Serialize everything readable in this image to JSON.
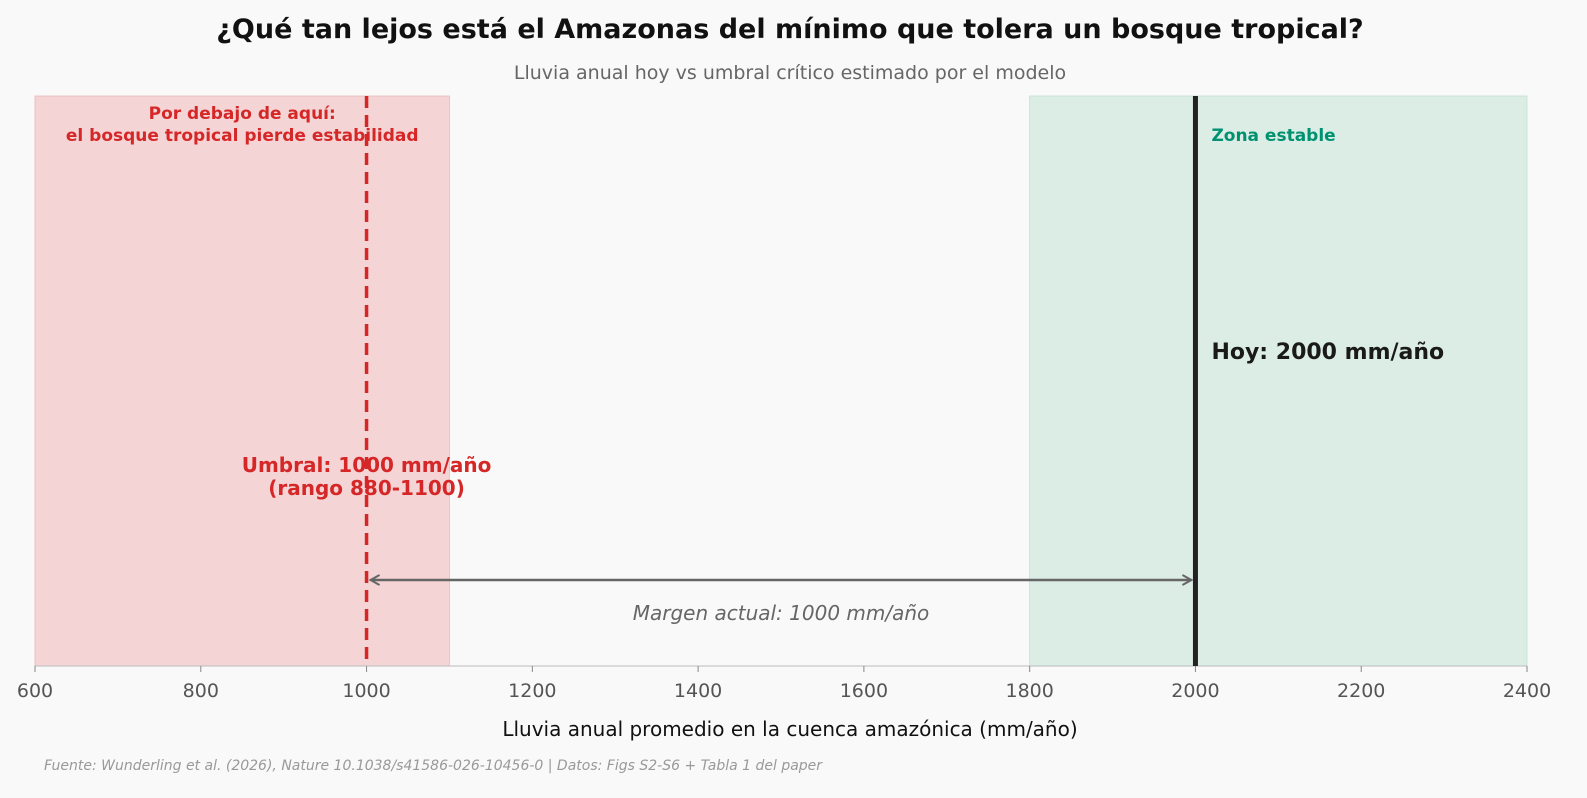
{
  "chart_data": {
    "type": "line",
    "title": "¿Qué tan lejos está el Amazonas del mínimo que tolera un bosque tropical?",
    "subtitle": "Lluvia anual hoy vs umbral crítico estimado por el modelo",
    "xlabel": "Lluvia anual promedio en la cuenca amazónica (mm/año)",
    "xlim": [
      600,
      2400
    ],
    "xticks": [
      600,
      800,
      1000,
      1200,
      1400,
      1600,
      1800,
      2000,
      2200,
      2400
    ],
    "grid": false,
    "danger_zone": {
      "range": [
        600,
        1100
      ],
      "color": "#f4d4d4",
      "label_line1": "Por debajo de aquí:",
      "label_line2": "el bosque tropical pierde estabilidad"
    },
    "stable_zone": {
      "range": [
        1800,
        2400
      ],
      "color": "#dcede6",
      "label": "Zona estable"
    },
    "threshold": {
      "value": 1000,
      "color": "#d62728",
      "label_line1": "Umbral: 1000 mm/año",
      "label_line2": "(rango 880-1100)"
    },
    "today": {
      "value": 2000,
      "color": "#222222",
      "label": "Hoy: 2000 mm/año"
    },
    "margin": {
      "from": 1000,
      "to": 2000,
      "label": "Margen actual: 1000 mm/año"
    }
  },
  "footer": "Fuente: Wunderling et al. (2026), Nature 10.1038/s41586-026-10456-0 | Datos: Figs S2-S6 + Tabla 1 del paper"
}
